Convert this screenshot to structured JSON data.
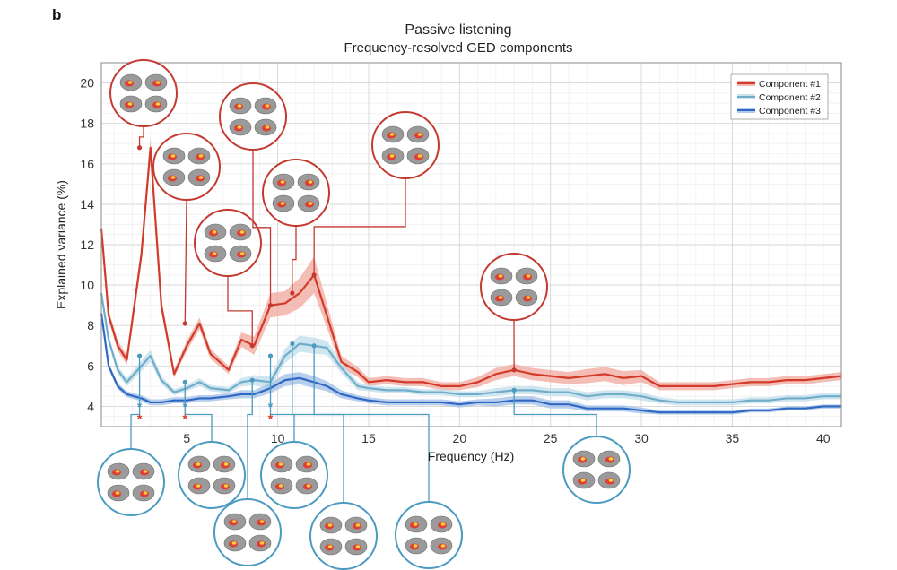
{
  "figure": {
    "panel_letter": "b"
  },
  "colors": {
    "c1_line": "#d23a2a",
    "c1_band": "#f0a89e",
    "c2_line": "#6fadc9",
    "c2_band": "#bfdcea",
    "c3_line": "#2f68c4",
    "c3_band": "#9fbde6",
    "callout_red": "#c43a30",
    "callout_blue": "#4b9ac0",
    "brain_gray": "#9a9a9a",
    "brain_hot": "#e8332a",
    "brain_yellow": "#f7d23a"
  },
  "chart_data": {
    "type": "line",
    "title": "Passive listening",
    "subtitle": "Frequency-resolved GED components",
    "xlabel": "Frequency (Hz)",
    "ylabel": "Explained variance (%)",
    "xlim": [
      0.3,
      41
    ],
    "ylim": [
      3,
      21
    ],
    "xticks": [
      5,
      10,
      15,
      20,
      25,
      30,
      35,
      40
    ],
    "yticks": [
      4,
      6,
      8,
      10,
      12,
      14,
      16,
      18,
      20
    ],
    "grid": true,
    "legend_position": "top-right",
    "x": [
      0.3,
      0.7,
      1.2,
      1.7,
      2.5,
      3.0,
      3.6,
      4.3,
      5.0,
      5.7,
      6.3,
      7.3,
      8.0,
      8.7,
      9.6,
      10.4,
      11.2,
      12.0,
      12.7,
      13.5,
      14.4,
      15.0,
      16.0,
      17.0,
      18.0,
      19.0,
      20.0,
      21.0,
      22.0,
      23.0,
      24.0,
      25.0,
      26.0,
      27.0,
      28.0,
      29.0,
      30.0,
      31.0,
      32.0,
      33.0,
      34.0,
      35.0,
      36.0,
      37.0,
      38.0,
      39.0,
      40.0,
      41.0
    ],
    "series": [
      {
        "name": "Component #1",
        "values": [
          12.8,
          8.5,
          7.0,
          6.3,
          11.5,
          16.8,
          9.0,
          5.6,
          7.0,
          8.1,
          6.6,
          5.8,
          7.3,
          7.0,
          9.0,
          9.1,
          9.6,
          10.5,
          8.5,
          6.2,
          5.7,
          5.2,
          5.3,
          5.2,
          5.2,
          5.0,
          5.0,
          5.2,
          5.6,
          5.8,
          5.6,
          5.5,
          5.4,
          5.5,
          5.6,
          5.4,
          5.5,
          5.0,
          5.0,
          5.0,
          5.0,
          5.1,
          5.2,
          5.2,
          5.3,
          5.3,
          5.4,
          5.5
        ],
        "band": [
          0.25,
          0.25,
          0.25,
          0.25,
          0.4,
          0.5,
          0.35,
          0.2,
          0.25,
          0.3,
          0.25,
          0.2,
          0.35,
          0.45,
          0.6,
          0.6,
          0.75,
          0.9,
          0.6,
          0.3,
          0.25,
          0.2,
          0.2,
          0.2,
          0.2,
          0.2,
          0.2,
          0.25,
          0.3,
          0.3,
          0.3,
          0.3,
          0.3,
          0.35,
          0.35,
          0.35,
          0.3,
          0.2,
          0.2,
          0.2,
          0.2,
          0.2,
          0.2,
          0.2,
          0.2,
          0.2,
          0.2,
          0.2
        ]
      },
      {
        "name": "Component #2",
        "values": [
          9.6,
          7.3,
          5.8,
          5.2,
          6.0,
          6.5,
          5.3,
          4.7,
          4.9,
          5.2,
          4.9,
          4.8,
          5.2,
          5.3,
          5.2,
          6.5,
          7.1,
          7.0,
          6.9,
          5.9,
          5.0,
          4.9,
          4.8,
          4.8,
          4.7,
          4.7,
          4.6,
          4.6,
          4.7,
          4.8,
          4.8,
          4.7,
          4.7,
          4.5,
          4.6,
          4.6,
          4.5,
          4.3,
          4.2,
          4.2,
          4.2,
          4.2,
          4.3,
          4.3,
          4.4,
          4.4,
          4.5,
          4.5
        ],
        "band": [
          0.2,
          0.2,
          0.2,
          0.2,
          0.25,
          0.3,
          0.2,
          0.15,
          0.15,
          0.2,
          0.15,
          0.15,
          0.2,
          0.25,
          0.3,
          0.35,
          0.4,
          0.4,
          0.35,
          0.25,
          0.2,
          0.15,
          0.15,
          0.15,
          0.15,
          0.15,
          0.15,
          0.15,
          0.2,
          0.2,
          0.2,
          0.2,
          0.2,
          0.2,
          0.2,
          0.2,
          0.2,
          0.15,
          0.15,
          0.15,
          0.15,
          0.15,
          0.15,
          0.15,
          0.15,
          0.15,
          0.15,
          0.15
        ]
      },
      {
        "name": "Component #3",
        "values": [
          8.6,
          6.0,
          5.0,
          4.6,
          4.4,
          4.2,
          4.2,
          4.3,
          4.3,
          4.4,
          4.4,
          4.5,
          4.6,
          4.6,
          4.9,
          5.3,
          5.4,
          5.2,
          5.0,
          4.6,
          4.4,
          4.3,
          4.2,
          4.2,
          4.2,
          4.2,
          4.1,
          4.2,
          4.2,
          4.3,
          4.3,
          4.1,
          4.1,
          3.9,
          3.9,
          3.9,
          3.8,
          3.7,
          3.7,
          3.7,
          3.7,
          3.7,
          3.8,
          3.8,
          3.9,
          3.9,
          4.0,
          4.0
        ],
        "band": [
          0.15,
          0.15,
          0.15,
          0.15,
          0.15,
          0.15,
          0.15,
          0.15,
          0.15,
          0.15,
          0.15,
          0.15,
          0.2,
          0.2,
          0.25,
          0.3,
          0.3,
          0.3,
          0.25,
          0.2,
          0.15,
          0.15,
          0.15,
          0.15,
          0.15,
          0.15,
          0.15,
          0.15,
          0.2,
          0.2,
          0.2,
          0.2,
          0.2,
          0.15,
          0.15,
          0.15,
          0.15,
          0.1,
          0.1,
          0.1,
          0.1,
          0.1,
          0.1,
          0.1,
          0.1,
          0.1,
          0.1,
          0.1
        ]
      }
    ],
    "significance_markers": [
      {
        "x": 2.4,
        "symbols": [
          "*",
          "*"
        ]
      },
      {
        "x": 4.9,
        "symbols": [
          "*",
          "*"
        ]
      },
      {
        "x": 9.6,
        "symbols": [
          "*",
          "*"
        ]
      }
    ],
    "callouts": [
      {
        "series": 0,
        "x": 2.4,
        "y": 16.8,
        "color": "red",
        "side": "top"
      },
      {
        "series": 0,
        "x": 4.9,
        "y": 8.1,
        "color": "red",
        "side": "top"
      },
      {
        "series": 0,
        "x": 8.6,
        "y": 7.0,
        "color": "red",
        "side": "top"
      },
      {
        "series": 0,
        "x": 9.6,
        "y": 9.0,
        "color": "red",
        "side": "top"
      },
      {
        "series": 0,
        "x": 10.8,
        "y": 9.6,
        "color": "red",
        "side": "top"
      },
      {
        "series": 0,
        "x": 12.0,
        "y": 10.5,
        "color": "red",
        "side": "top"
      },
      {
        "series": 0,
        "x": 23.0,
        "y": 5.8,
        "color": "red",
        "side": "top"
      },
      {
        "series": 1,
        "x": 2.4,
        "y": 6.5,
        "color": "blue",
        "side": "bottom"
      },
      {
        "series": 1,
        "x": 4.9,
        "y": 5.2,
        "color": "blue",
        "side": "bottom"
      },
      {
        "series": 1,
        "x": 8.6,
        "y": 5.3,
        "color": "blue",
        "side": "bottom"
      },
      {
        "series": 1,
        "x": 9.6,
        "y": 6.5,
        "color": "blue",
        "side": "bottom"
      },
      {
        "series": 1,
        "x": 10.8,
        "y": 7.1,
        "color": "blue",
        "side": "bottom"
      },
      {
        "series": 1,
        "x": 12.0,
        "y": 7.0,
        "color": "blue",
        "side": "bottom"
      },
      {
        "series": 1,
        "x": 23.0,
        "y": 4.8,
        "color": "blue",
        "side": "bottom"
      }
    ]
  }
}
